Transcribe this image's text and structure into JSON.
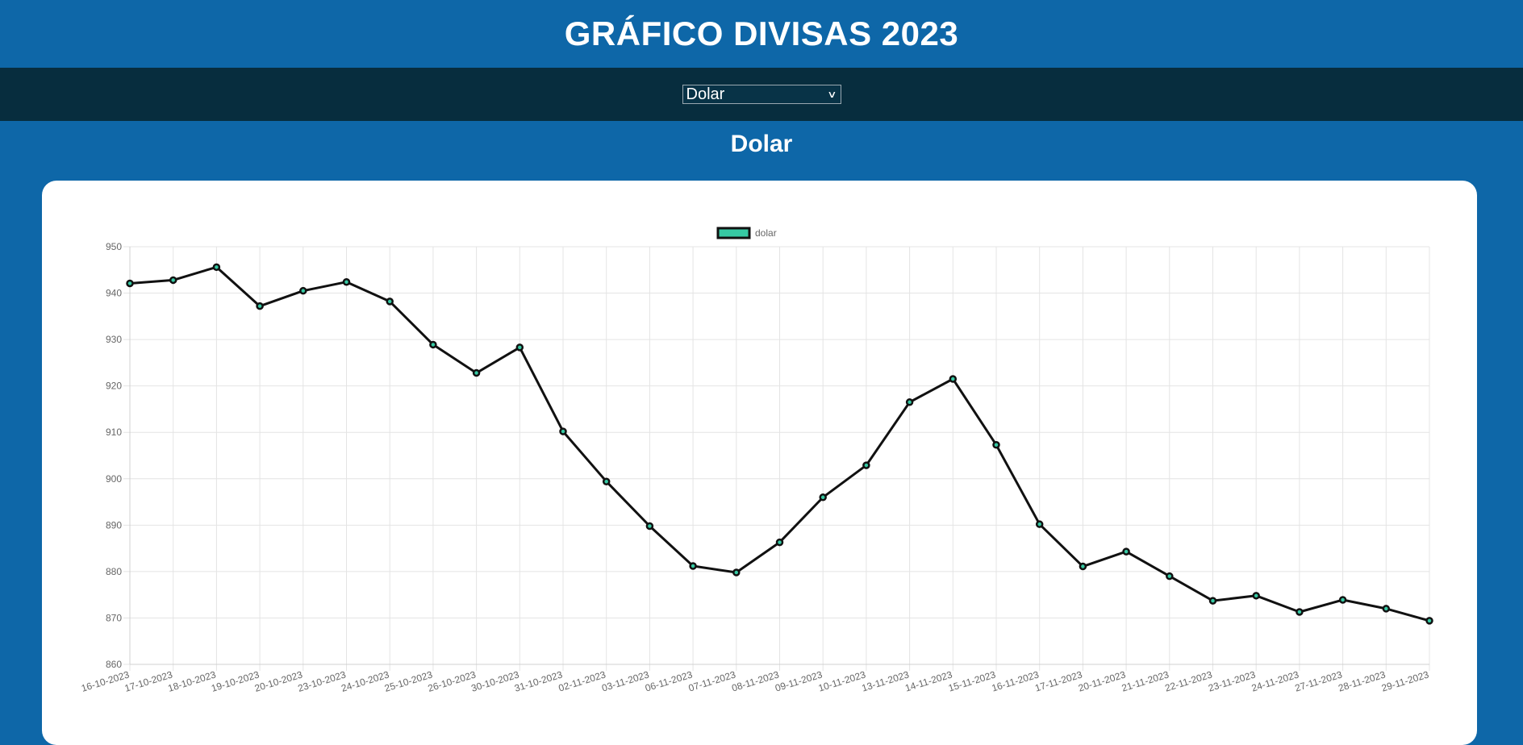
{
  "header": {
    "title": "GRÁFICO DIVISAS 2023"
  },
  "selector": {
    "selected": "Dolar",
    "icon": "chevron-down-icon"
  },
  "section": {
    "title": "Dolar"
  },
  "colors": {
    "background": "#0e67a8",
    "bar": "#072d3e",
    "line": "#111111",
    "legend_fill": "#36c9a3"
  },
  "chart_data": {
    "type": "line",
    "title": "",
    "xlabel": "",
    "ylabel": "",
    "ylim": [
      860,
      950
    ],
    "yticks": [
      860,
      870,
      880,
      890,
      900,
      910,
      920,
      930,
      940,
      950
    ],
    "grid": true,
    "legend_position": "top-center",
    "categories": [
      "16-10-2023",
      "17-10-2023",
      "18-10-2023",
      "19-10-2023",
      "20-10-2023",
      "23-10-2023",
      "24-10-2023",
      "25-10-2023",
      "26-10-2023",
      "30-10-2023",
      "31-10-2023",
      "02-11-2023",
      "03-11-2023",
      "06-11-2023",
      "07-11-2023",
      "08-11-2023",
      "09-11-2023",
      "10-11-2023",
      "13-11-2023",
      "14-11-2023",
      "15-11-2023",
      "16-11-2023",
      "17-11-2023",
      "20-11-2023",
      "21-11-2023",
      "22-11-2023",
      "23-11-2023",
      "24-11-2023",
      "27-11-2023",
      "28-11-2023",
      "29-11-2023"
    ],
    "series": [
      {
        "name": "dolar",
        "values": [
          942.1,
          942.8,
          945.6,
          937.2,
          940.5,
          942.4,
          938.2,
          928.9,
          922.8,
          928.3,
          910.2,
          899.4,
          889.8,
          881.2,
          879.8,
          886.3,
          896.0,
          902.9,
          916.5,
          921.5,
          907.3,
          890.2,
          881.1,
          884.3,
          879.0,
          873.7,
          874.8,
          871.3,
          873.9,
          872.0,
          869.4
        ]
      }
    ]
  }
}
